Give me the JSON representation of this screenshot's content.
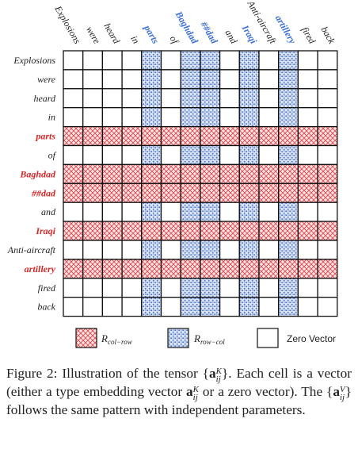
{
  "tokens": [
    {
      "text": "Explosions",
      "highlight": "none"
    },
    {
      "text": "were",
      "highlight": "none"
    },
    {
      "text": "heard",
      "highlight": "none"
    },
    {
      "text": "in",
      "highlight": "none"
    },
    {
      "text": "parts",
      "highlight": "red"
    },
    {
      "text": "of",
      "highlight": "none"
    },
    {
      "text": "Baghdad",
      "highlight": "red"
    },
    {
      "text": "##dad",
      "highlight": "red"
    },
    {
      "text": "and",
      "highlight": "none"
    },
    {
      "text": "Iraqi",
      "highlight": "red"
    },
    {
      "text": "Anti-aircraft",
      "highlight": "none"
    },
    {
      "text": "artillery",
      "highlight": "red"
    },
    {
      "text": "fired",
      "highlight": "none"
    },
    {
      "text": "back",
      "highlight": "none"
    }
  ],
  "column_tokens": [
    {
      "text": "Explosions",
      "highlight": "none"
    },
    {
      "text": "were",
      "highlight": "none"
    },
    {
      "text": "heard",
      "highlight": "none"
    },
    {
      "text": "in",
      "highlight": "none"
    },
    {
      "text": "parts",
      "highlight": "blue"
    },
    {
      "text": "of",
      "highlight": "none"
    },
    {
      "text": "Baghdad",
      "highlight": "blue"
    },
    {
      "text": "##dad",
      "highlight": "blue"
    },
    {
      "text": "and",
      "highlight": "none"
    },
    {
      "text": "Iraqi",
      "highlight": "blue"
    },
    {
      "text": "Anti-aircraft",
      "highlight": "none"
    },
    {
      "text": "artillery",
      "highlight": "blue"
    },
    {
      "text": "fired",
      "highlight": "none"
    },
    {
      "text": "back",
      "highlight": "none"
    }
  ],
  "highlighted_rows": [
    4,
    6,
    7,
    9,
    11
  ],
  "highlighted_cols": [
    4,
    6,
    7,
    9,
    11
  ],
  "legend": {
    "red_label_base": "R",
    "red_label_sub": "col−row",
    "blue_label_base": "R",
    "blue_label_sub": "row−col",
    "zero_label": "Zero Vector"
  },
  "colors": {
    "red_hatch": "#e0474c",
    "red_bg": "#fbe3e4",
    "blue_dots": "#4a72c4",
    "blue_bg": "#dde6f7",
    "highlight_text_red": "#d62828",
    "highlight_text_blue": "#3b6fd4",
    "grid": "#111111"
  },
  "caption": {
    "prefix": "Figure 2:",
    "part1": "Illustration of the tensor",
    "part2": ". Each cell is a vector (either a type embedding vector",
    "part3": "or a zero vector). The",
    "part4": "follows the same pattern with independent parameters.",
    "math_open": "{",
    "math_close": "}",
    "vec": "a",
    "sup_k": "K",
    "sup_v": "V",
    "sub_ij": "ij"
  }
}
